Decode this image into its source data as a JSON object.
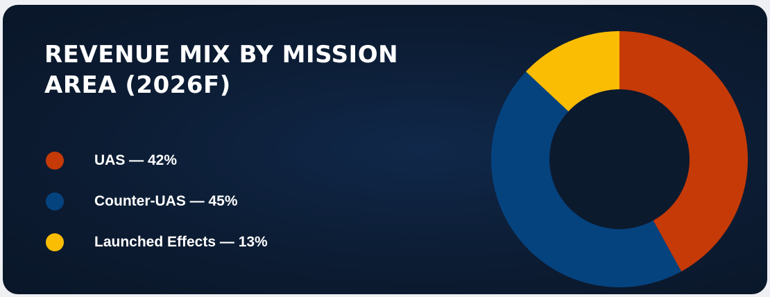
{
  "chart_data": {
    "type": "pie",
    "title": "REVENUE MIX BY MISSION AREA (2026F)",
    "donut": true,
    "start_angle_deg": 0,
    "categories": [
      "UAS",
      "Counter-UAS",
      "Launched Effects"
    ],
    "values": [
      42,
      45,
      13
    ],
    "unit": "%",
    "colors": [
      "#c53a07",
      "#05437f",
      "#fbbd03"
    ],
    "legend_labels": [
      "UAS — 42%",
      "Counter-UAS — 45%",
      "Launched Effects — 13%"
    ],
    "legend_position": "left"
  }
}
